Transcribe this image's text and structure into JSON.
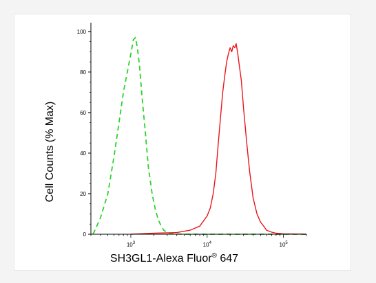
{
  "chart_data": {
    "type": "line",
    "xscale": "log",
    "xlim": [
      300,
      200000
    ],
    "ylim": [
      0,
      103
    ],
    "xlabel": {
      "main": "SH3GL1-Alexa Fluor",
      "sup": "®",
      "tail": " 647"
    },
    "ylabel": "Cell Counts (% Max)",
    "x_ticks": [
      {
        "base": "10",
        "exp": "3",
        "value": 1000
      },
      {
        "base": "10",
        "exp": "4",
        "value": 10000
      },
      {
        "base": "10",
        "exp": "5",
        "value": 100000
      }
    ],
    "y_ticks": [
      "0",
      "20",
      "40",
      "60",
      "80",
      "100"
    ],
    "series": [
      {
        "color": "#2bd42b",
        "dash": true,
        "x": [
          320,
          400,
          500,
          600,
          700,
          800,
          900,
          1000,
          1080,
          1150,
          1220,
          1300,
          1400,
          1550,
          1700,
          1900,
          2100,
          2300,
          2500,
          2700,
          3000,
          3300,
          5000,
          10000,
          30000,
          100000,
          200000
        ],
        "y": [
          0,
          8,
          20,
          38,
          55,
          70,
          80,
          89,
          96,
          97,
          92,
          83,
          68,
          50,
          33,
          20,
          12,
          7,
          4,
          2,
          0.8,
          0.2,
          0,
          0,
          0,
          0,
          0
        ]
      },
      {
        "color": "#e8161b",
        "dash": false,
        "x": [
          1000,
          2000,
          4000,
          6000,
          8000,
          10000,
          11000,
          12000,
          13000,
          14000,
          15000,
          16000,
          17000,
          18000,
          19000,
          20000,
          21000,
          22000,
          23000,
          24000,
          25000,
          26000,
          28000,
          30000,
          33000,
          36000,
          40000,
          45000,
          50000,
          55000,
          60000,
          70000,
          80000,
          100000,
          150000,
          200000
        ],
        "y": [
          0,
          0.5,
          0.8,
          2,
          4,
          9,
          13,
          20,
          30,
          45,
          58,
          70,
          78,
          85,
          89,
          92,
          90,
          93,
          92,
          94,
          90,
          85,
          76,
          62,
          45,
          31,
          18,
          10,
          6,
          4,
          2,
          1,
          0.5,
          0.2,
          0.1,
          0
        ]
      }
    ]
  }
}
